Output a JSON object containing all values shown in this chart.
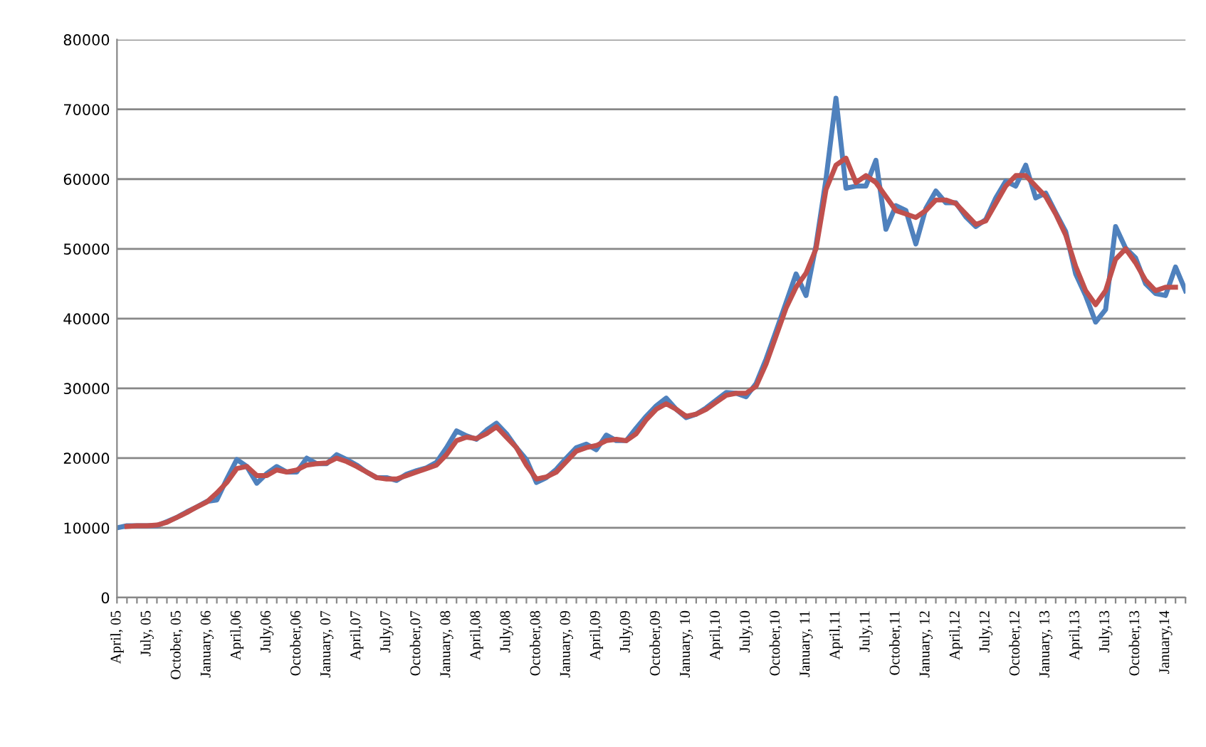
{
  "chart_data": {
    "type": "line",
    "categories": [
      "April, 05",
      null,
      null,
      "July, 05",
      null,
      null,
      "October, 05",
      null,
      null,
      "January, 06",
      null,
      null,
      "April,06",
      null,
      null,
      "July,06",
      null,
      null,
      "October,06",
      null,
      null,
      "January, 07",
      null,
      null,
      "April,07",
      null,
      null,
      "July,07",
      null,
      null,
      "October,07",
      null,
      null,
      "January, 08",
      null,
      null,
      "April,08",
      null,
      null,
      "July,08",
      null,
      null,
      "October,08",
      null,
      null,
      "January, 09",
      null,
      null,
      "April,09",
      null,
      null,
      "July,09",
      null,
      null,
      "October,09",
      null,
      null,
      "January, 10",
      null,
      null,
      "April,10",
      null,
      null,
      "July,10",
      null,
      null,
      "October,10",
      null,
      null,
      "January, 11",
      null,
      null,
      "April,11",
      null,
      null,
      "July,11",
      null,
      null,
      "October,11",
      null,
      null,
      "January, 12",
      null,
      null,
      "April,12",
      null,
      null,
      "July,12",
      null,
      null,
      "October,12",
      null,
      null,
      "January, 13",
      null,
      null,
      "April,13",
      null,
      null,
      "July,13",
      null,
      null,
      "October,13",
      null,
      null,
      "January,14",
      null,
      null
    ],
    "series": [
      {
        "color": "#4f81bd",
        "values": [
          10000,
          10300,
          10300,
          10300,
          10300,
          10900,
          11500,
          12300,
          13000,
          13800,
          14000,
          17000,
          19800,
          18800,
          16400,
          17800,
          18800,
          18000,
          18000,
          20000,
          19200,
          19200,
          20500,
          19800,
          19000,
          18000,
          17200,
          17200,
          16800,
          17700,
          18200,
          18600,
          19400,
          21500,
          23900,
          23200,
          22700,
          24000,
          25000,
          23500,
          21500,
          19800,
          16500,
          17200,
          18400,
          20000,
          21500,
          22000,
          21200,
          23300,
          22500,
          22500,
          24300,
          26000,
          27500,
          28600,
          27000,
          25800,
          26300,
          27200,
          28300,
          29400,
          29300,
          28800,
          30700,
          34200,
          38200,
          42300,
          46400,
          43300,
          50500,
          60000,
          71600,
          58700,
          59000,
          59000,
          62700,
          52800,
          56200,
          55500,
          50700,
          55800,
          58300,
          56600,
          56600,
          54600,
          53200,
          54200,
          57300,
          59700,
          59000,
          62000,
          57300,
          58000,
          55200,
          52500,
          46400,
          43300,
          39500,
          41300,
          53200,
          50100,
          48700,
          45000,
          43600,
          43300,
          47400,
          44000
        ]
      },
      {
        "color": "#c0504d",
        "values": [
          null,
          10200,
          10300,
          10300,
          10400,
          10800,
          11500,
          12200,
          13000,
          13700,
          15000,
          16500,
          18500,
          18800,
          17500,
          17500,
          18300,
          18000,
          18300,
          19000,
          19200,
          19300,
          20000,
          19500,
          18800,
          18000,
          17200,
          17000,
          17000,
          17500,
          18000,
          18500,
          19000,
          20500,
          22500,
          23000,
          22800,
          23500,
          24500,
          23000,
          21500,
          19000,
          17000,
          17300,
          18000,
          19500,
          21000,
          21500,
          21800,
          22500,
          22700,
          22500,
          23500,
          25500,
          27000,
          27800,
          27000,
          26000,
          26300,
          27000,
          28000,
          29000,
          29300,
          29300,
          30300,
          33500,
          37500,
          41500,
          44500,
          46500,
          50000,
          58500,
          62000,
          63000,
          59500,
          60500,
          59500,
          57500,
          55500,
          55000,
          54500,
          55500,
          57000,
          57000,
          56500,
          55000,
          53500,
          54000,
          56500,
          59000,
          60500,
          60500,
          59000,
          57500,
          55000,
          52000,
          47500,
          44000,
          42000,
          44000,
          48500,
          50000,
          48000,
          45500,
          44000,
          44500,
          44500,
          null
        ]
      }
    ],
    "ylim": [
      0,
      80000
    ],
    "yticks": [
      0,
      10000,
      20000,
      30000,
      40000,
      50000,
      60000,
      70000,
      80000
    ],
    "grid": "y",
    "line_style": "solid",
    "marker": "none",
    "legend": false
  }
}
